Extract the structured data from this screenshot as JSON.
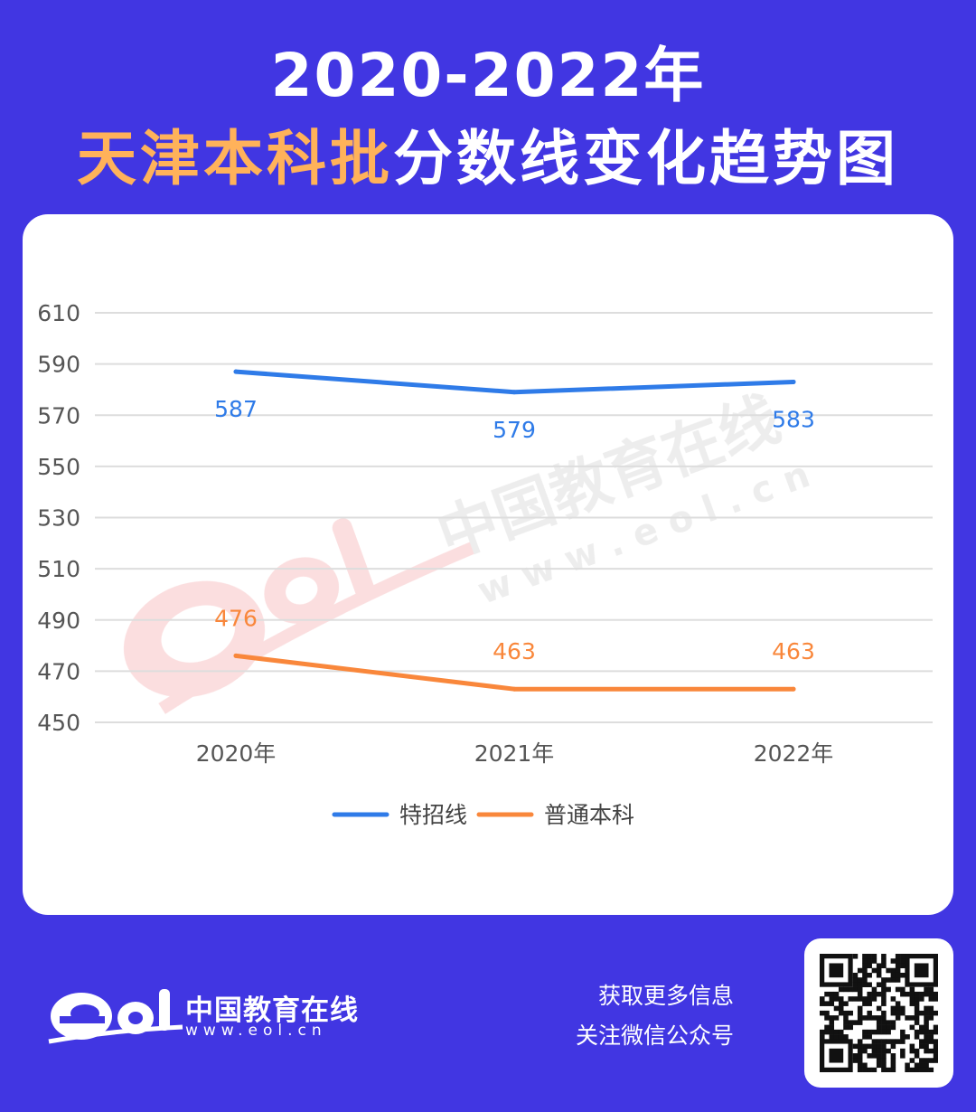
{
  "header": {
    "title_line1": "2020-2022年",
    "title_highlight": "天津本科批",
    "title_rest": "分数线变化趋势图"
  },
  "chart_data": {
    "type": "line",
    "categories": [
      "2020年",
      "2021年",
      "2022年"
    ],
    "series": [
      {
        "name": "特招线",
        "values": [
          587,
          579,
          583
        ],
        "color": "#2f7be8"
      },
      {
        "name": "普通本科",
        "values": [
          476,
          463,
          463
        ],
        "color": "#f9873b"
      }
    ],
    "y_ticks": [
      450,
      470,
      490,
      510,
      530,
      550,
      570,
      590,
      610
    ],
    "ylim": [
      450,
      610
    ],
    "grid": true,
    "legend_position": "bottom-center",
    "watermark_text": "中国教育在线",
    "watermark_url": "w w w . e o l . c n"
  },
  "footer": {
    "brand_name": "中国教育在线",
    "brand_url": "www.eol.cn",
    "info_line1": "获取更多信息",
    "info_line2": "关注微信公众号"
  },
  "colors": {
    "background": "#4136e2",
    "accent": "#ffb25a",
    "card": "#ffffff"
  }
}
